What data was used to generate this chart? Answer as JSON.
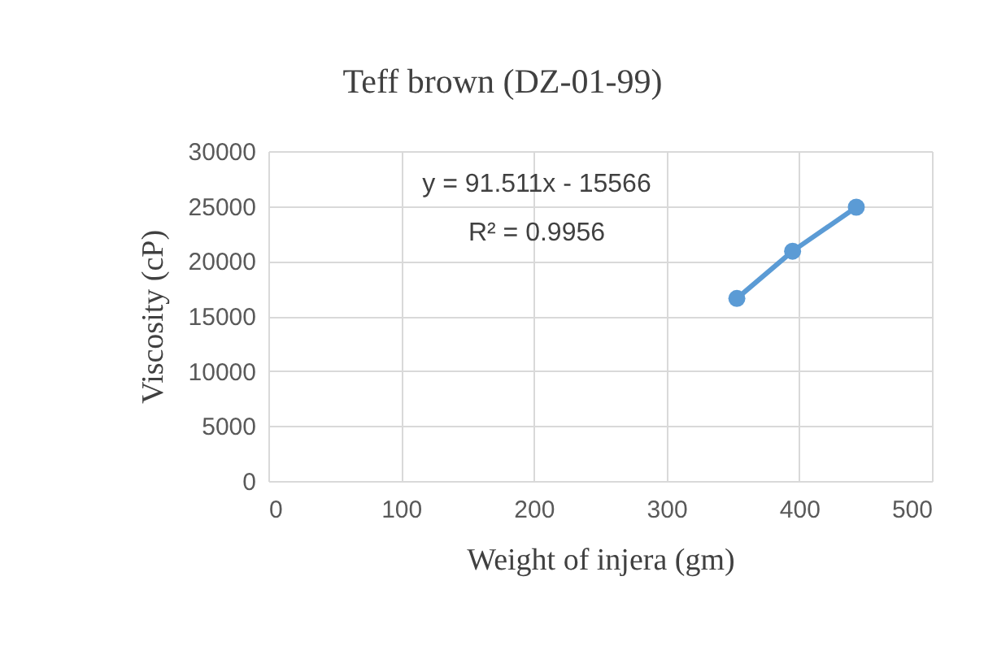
{
  "chart_data": {
    "type": "line",
    "title": "Teff brown (DZ-01-99)",
    "xlabel": "Weight of injera (gm)",
    "ylabel": "Viscosity (cP)",
    "x": [
      353,
      395,
      443
    ],
    "series": [
      {
        "color": "#5b9bd5",
        "values": [
          16600,
          20900,
          24900
        ]
      }
    ],
    "xlim": [
      0,
      500
    ],
    "xticks": [
      0,
      100,
      200,
      300,
      400,
      500
    ],
    "ylim": [
      0,
      30000
    ],
    "yticks": [
      0,
      5000,
      10000,
      15000,
      20000,
      25000,
      30000
    ],
    "grid": true,
    "marker": "circle",
    "line_style": "solid",
    "annotations": [
      "y = 91.511x - 15566",
      "R² = 0.9956"
    ]
  }
}
